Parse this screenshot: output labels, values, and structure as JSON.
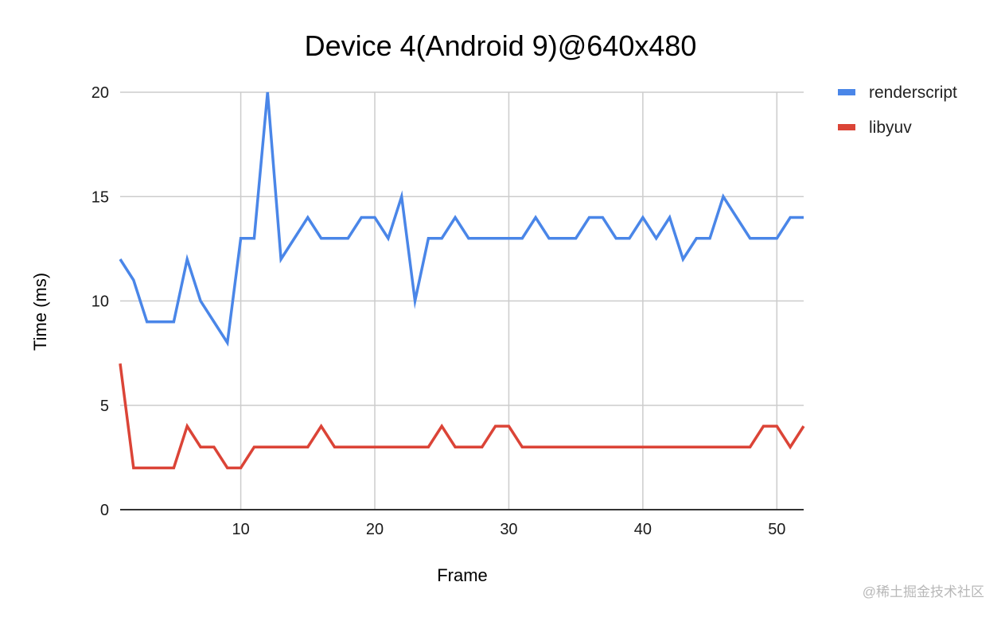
{
  "chart_data": {
    "type": "line",
    "title": "Device 4(Android 9)@640x480",
    "xlabel": "Frame",
    "ylabel": "Time (ms)",
    "xlim": [
      1,
      52
    ],
    "ylim": [
      0,
      20
    ],
    "xticks": [
      10,
      20,
      30,
      40,
      50
    ],
    "yticks": [
      0,
      5,
      10,
      15,
      20
    ],
    "grid": true,
    "legend_position": "right",
    "x": [
      1,
      2,
      3,
      4,
      5,
      6,
      7,
      8,
      9,
      10,
      11,
      12,
      13,
      14,
      15,
      16,
      17,
      18,
      19,
      20,
      21,
      22,
      23,
      24,
      25,
      26,
      27,
      28,
      29,
      30,
      31,
      32,
      33,
      34,
      35,
      36,
      37,
      38,
      39,
      40,
      41,
      42,
      43,
      44,
      45,
      46,
      47,
      48,
      49,
      50,
      51,
      52
    ],
    "series": [
      {
        "name": "renderscript",
        "color": "#4a86e8",
        "values": [
          12,
          11,
          9,
          9,
          9,
          12,
          10,
          9,
          8,
          13,
          13,
          20,
          12,
          13,
          14,
          13,
          13,
          13,
          14,
          14,
          13,
          15,
          10,
          13,
          13,
          14,
          13,
          13,
          13,
          13,
          13,
          14,
          13,
          13,
          13,
          14,
          14,
          13,
          13,
          14,
          13,
          14,
          12,
          13,
          13,
          15,
          14,
          13,
          13,
          13,
          14,
          14
        ]
      },
      {
        "name": "libyuv",
        "color": "#db4437",
        "values": [
          7,
          2,
          2,
          2,
          2,
          4,
          3,
          3,
          2,
          2,
          3,
          3,
          3,
          3,
          3,
          4,
          3,
          3,
          3,
          3,
          3,
          3,
          3,
          3,
          4,
          3,
          3,
          3,
          4,
          4,
          3,
          3,
          3,
          3,
          3,
          3,
          3,
          3,
          3,
          3,
          3,
          3,
          3,
          3,
          3,
          3,
          3,
          3,
          4,
          4,
          3,
          4
        ]
      }
    ]
  },
  "watermark": "@稀土掘金技术社区"
}
